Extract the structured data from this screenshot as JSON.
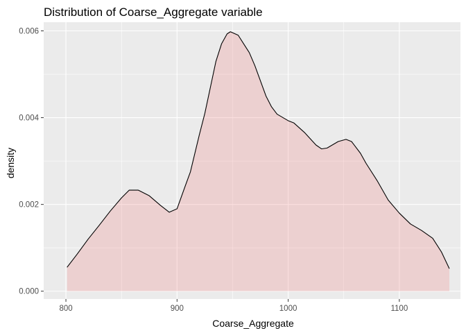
{
  "chart_data": {
    "type": "area",
    "title": "Distribution of Coarse_Aggregate variable",
    "xlabel": "Coarse_Aggregate",
    "ylabel": "density",
    "xlim": [
      780,
      1155
    ],
    "ylim": [
      -0.00018,
      0.0062
    ],
    "x_ticks": [
      800,
      900,
      1000,
      1100
    ],
    "x_tick_labels": [
      "800",
      "900",
      "1000",
      "1100"
    ],
    "y_ticks": [
      0,
      0.002,
      0.004,
      0.006
    ],
    "y_tick_labels": [
      "0.000",
      "0.002",
      "0.004",
      "0.006"
    ],
    "grid": true,
    "legend": "none",
    "colors": {
      "panel_background": "#ebebeb",
      "grid_major": "#ffffff",
      "fill": "#f08080",
      "fill_opacity": 0.25,
      "line": "#000000"
    },
    "series": [
      {
        "x": [
          801,
          810,
          820,
          830,
          840,
          850,
          857,
          865,
          875,
          885,
          893,
          900,
          907,
          912,
          920,
          925,
          930,
          935,
          940,
          945,
          948,
          955,
          960,
          965,
          970,
          975,
          980,
          985,
          990,
          1000,
          1005,
          1015,
          1025,
          1030,
          1035,
          1045,
          1052,
          1057,
          1065,
          1070,
          1080,
          1090,
          1100,
          1110,
          1120,
          1130,
          1138,
          1145
        ],
        "y": [
          0.00055,
          0.00085,
          0.0012,
          0.00152,
          0.00185,
          0.00215,
          0.00233,
          0.00233,
          0.0022,
          0.00198,
          0.00182,
          0.0019,
          0.0024,
          0.00275,
          0.0036,
          0.0041,
          0.0047,
          0.0053,
          0.0057,
          0.00593,
          0.00598,
          0.0059,
          0.0057,
          0.0055,
          0.0052,
          0.00485,
          0.0045,
          0.00425,
          0.00408,
          0.00393,
          0.00388,
          0.00365,
          0.00337,
          0.00328,
          0.0033,
          0.00345,
          0.0035,
          0.00345,
          0.00318,
          0.00295,
          0.00255,
          0.0021,
          0.0018,
          0.00155,
          0.0014,
          0.00122,
          0.0009,
          0.00052
        ]
      }
    ]
  }
}
